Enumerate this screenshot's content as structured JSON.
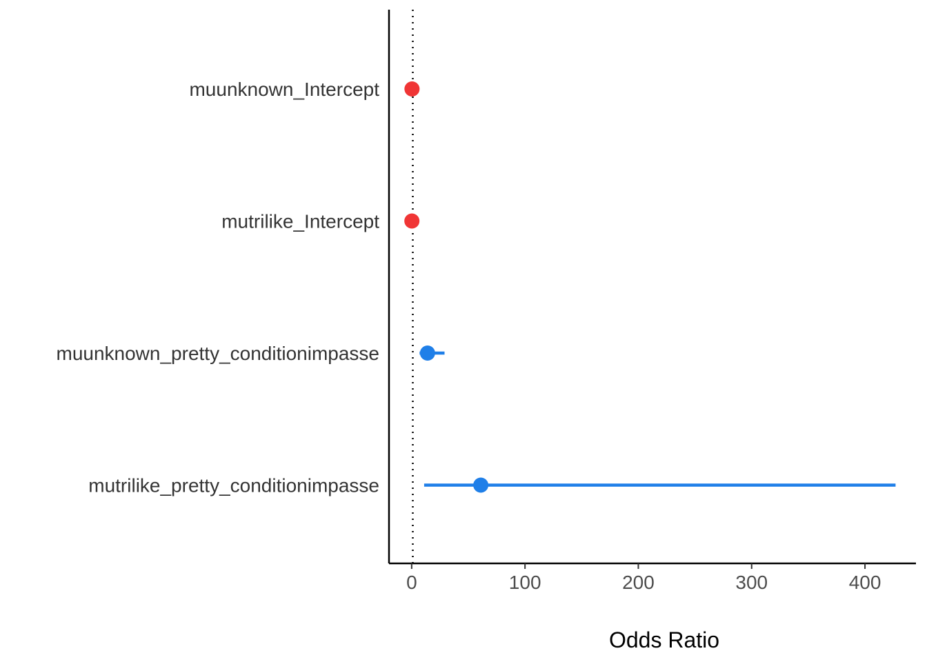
{
  "chart_data": {
    "type": "scatter",
    "subtype": "forest-plot",
    "xlabel": "Odds Ratio",
    "ylabel": "",
    "xlim": [
      -20,
      445
    ],
    "x_ticks": [
      0,
      100,
      200,
      300,
      400
    ],
    "x_tick_labels": [
      "0",
      "100",
      "200",
      "300",
      "400"
    ],
    "reference_line": {
      "x": 1,
      "style": "dotted",
      "color": "#000000"
    },
    "grid": false,
    "legend": "none",
    "rows": [
      {
        "label": "muunknown_Intercept",
        "estimate": 0.3,
        "lower": 0.1,
        "upper": 0.6,
        "color": "#f03535"
      },
      {
        "label": "mutrilike_Intercept",
        "estimate": 0.2,
        "lower": 0.05,
        "upper": 0.5,
        "color": "#f03535"
      },
      {
        "label": "muunknown_pretty_conditionimpasse",
        "estimate": 14,
        "lower": 7,
        "upper": 29,
        "color": "#1f7fe8"
      },
      {
        "label": "mutrilike_pretty_conditionimpasse",
        "estimate": 61,
        "lower": 11,
        "upper": 427,
        "color": "#1f7fe8"
      }
    ]
  }
}
